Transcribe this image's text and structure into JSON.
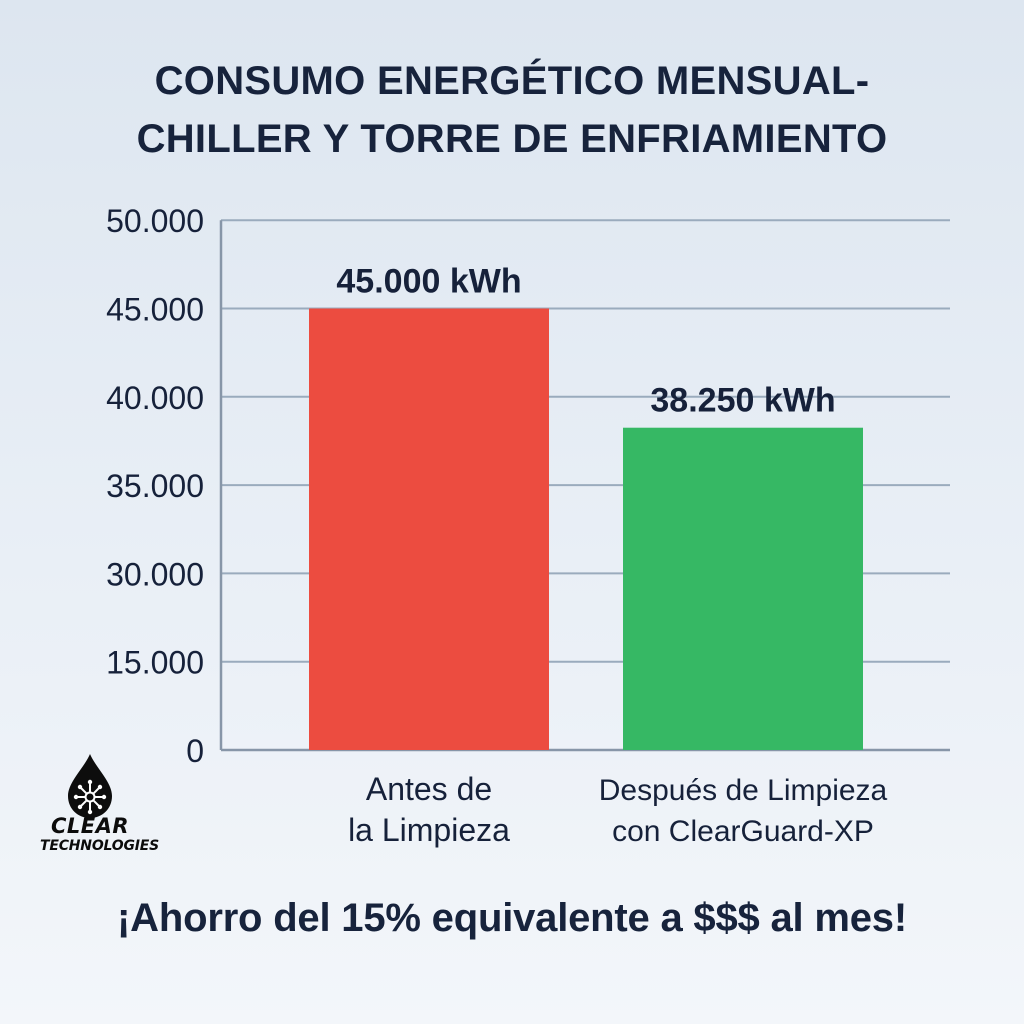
{
  "title": {
    "line1": "CONSUMO ENERGÉTICO MENSUAL-",
    "line2": "CHILLER Y TORRE DE ENFRIAMIENTO"
  },
  "chart_data": {
    "type": "bar",
    "title": "CONSUMO ENERGÉTICO MENSUAL- CHILLER Y TORRE DE ENFRIAMIENTO",
    "xlabel": "",
    "ylabel": "",
    "y_tick_labels": [
      "0",
      "15.000",
      "30.000",
      "35.000",
      "40.000",
      "45.000",
      "50.000"
    ],
    "categories": [
      [
        "Antes de",
        "la Limpieza"
      ],
      [
        "Después de Limpieza",
        "con ClearGuard-XP"
      ]
    ],
    "values": [
      45000,
      38250
    ],
    "value_labels": [
      "45.000 kWh",
      "38.250 kWh"
    ],
    "bar_colors": [
      "#ec4c40",
      "#36b864"
    ],
    "grid": true,
    "legend": "none"
  },
  "footer": "¡Ahorro del 15% equivalente a $$$ al mes!",
  "logo": {
    "icon": "water-drop-network-icon",
    "line1": "CLEAR",
    "line2": "TECHNOLOGIES"
  }
}
